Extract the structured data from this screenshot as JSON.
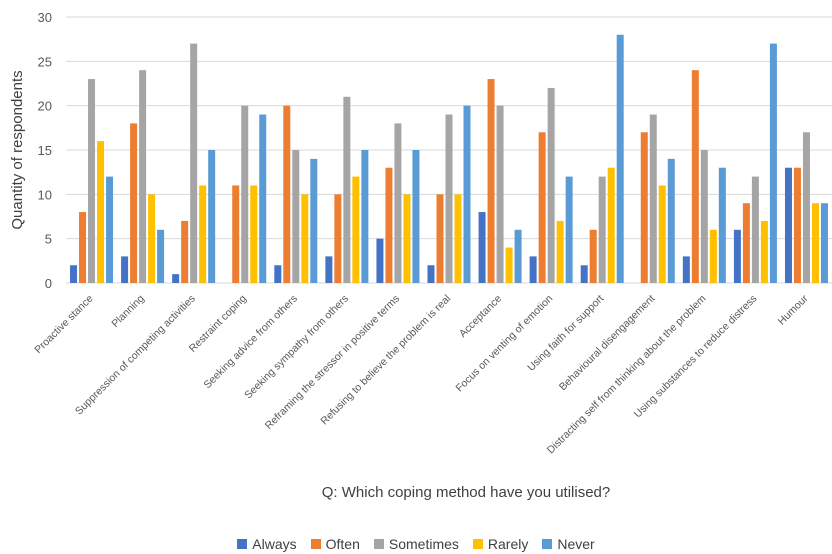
{
  "chart_data": {
    "type": "bar",
    "title": "",
    "xlabel": "Q: Which coping method have you utilised?",
    "ylabel": "Quantity of respondents",
    "ylim": [
      0,
      30
    ],
    "yticks": [
      0,
      5,
      10,
      15,
      20,
      25,
      30
    ],
    "grid": true,
    "legend_position": "bottom",
    "categories": [
      "Proactive stance",
      "Planning",
      "Suppression of competing activities",
      "Restraint coping",
      "Seeking advice from others",
      "Seeking sympathy from others",
      "Reframing the stressor in positive terms",
      "Refusing to believe the problem is real",
      "Acceptance",
      "Focus on venting of emotion",
      "Using faith for support",
      "Behavioural disengagement",
      "Distracting self from thinking about the problem",
      "Using substances to reduce distress",
      "Humour"
    ],
    "series": [
      {
        "name": "Always",
        "color": "#4472C4",
        "values": [
          2,
          3,
          1,
          0,
          2,
          3,
          5,
          2,
          8,
          3,
          2,
          0,
          3,
          6,
          13
        ]
      },
      {
        "name": "Often",
        "color": "#ED7D31",
        "values": [
          8,
          18,
          7,
          11,
          20,
          10,
          13,
          10,
          23,
          17,
          6,
          17,
          24,
          9,
          13
        ]
      },
      {
        "name": "Sometimes",
        "color": "#A5A5A5",
        "values": [
          23,
          24,
          27,
          20,
          15,
          21,
          18,
          19,
          20,
          22,
          12,
          19,
          15,
          12,
          17
        ]
      },
      {
        "name": "Rarely",
        "color": "#FFC000",
        "values": [
          16,
          10,
          11,
          11,
          10,
          12,
          10,
          10,
          4,
          7,
          13,
          11,
          6,
          7,
          9
        ]
      },
      {
        "name": "Never",
        "color": "#5B9BD5",
        "values": [
          12,
          6,
          15,
          19,
          14,
          15,
          15,
          20,
          6,
          12,
          28,
          14,
          13,
          27,
          9
        ]
      }
    ]
  }
}
